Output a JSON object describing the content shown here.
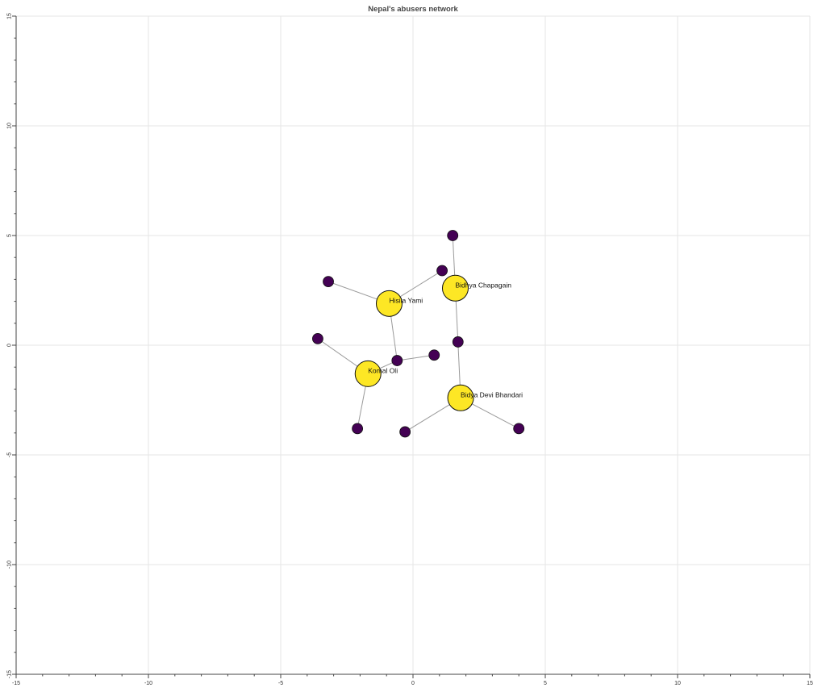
{
  "chart_data": {
    "type": "network",
    "title": "Nepal's abusers network",
    "xlim": [
      -15,
      15
    ],
    "ylim": [
      -15,
      15
    ],
    "grid": true,
    "x_ticks": [
      -15,
      -10,
      -5,
      0,
      5,
      10,
      15
    ],
    "y_ticks": [
      15,
      10,
      5,
      0,
      -5,
      -10,
      -15
    ],
    "colors": {
      "major": "#fde725",
      "minor": "#440154",
      "edge": "#9a9a9a",
      "grid": "#e6e6e6"
    },
    "nodes": [
      {
        "id": "hisila",
        "label": "Hisila Yami",
        "x": -0.9,
        "y": 1.9,
        "group": "major"
      },
      {
        "id": "bidhya",
        "label": "Bidhya Chapagain",
        "x": 1.6,
        "y": 2.6,
        "group": "major"
      },
      {
        "id": "komal",
        "label": "Komal Oli",
        "x": -1.7,
        "y": -1.3,
        "group": "major"
      },
      {
        "id": "bidya",
        "label": "Bidya Devi Bhandari",
        "x": 1.8,
        "y": -2.4,
        "group": "major"
      },
      {
        "id": "m1",
        "label": "",
        "x": 1.5,
        "y": 5.0,
        "group": "minor"
      },
      {
        "id": "m2",
        "label": "",
        "x": 1.1,
        "y": 3.4,
        "group": "minor"
      },
      {
        "id": "m3",
        "label": "",
        "x": -3.2,
        "y": 2.9,
        "group": "minor"
      },
      {
        "id": "m4",
        "label": "",
        "x": -3.6,
        "y": 0.3,
        "group": "minor"
      },
      {
        "id": "m5",
        "label": "",
        "x": -0.6,
        "y": -0.7,
        "group": "minor"
      },
      {
        "id": "m6",
        "label": "",
        "x": 0.8,
        "y": -0.45,
        "group": "minor"
      },
      {
        "id": "m7",
        "label": "",
        "x": 1.7,
        "y": 0.15,
        "group": "minor"
      },
      {
        "id": "m8",
        "label": "",
        "x": -2.1,
        "y": -3.8,
        "group": "minor"
      },
      {
        "id": "m9",
        "label": "",
        "x": -0.3,
        "y": -3.95,
        "group": "minor"
      },
      {
        "id": "m10",
        "label": "",
        "x": 4.0,
        "y": -3.8,
        "group": "minor"
      }
    ],
    "edges": [
      [
        "hisila",
        "m3"
      ],
      [
        "hisila",
        "m2"
      ],
      [
        "hisila",
        "m5"
      ],
      [
        "bidhya",
        "m1"
      ],
      [
        "bidhya",
        "m7"
      ],
      [
        "m7",
        "bidya"
      ],
      [
        "komal",
        "m4"
      ],
      [
        "komal",
        "m5"
      ],
      [
        "m5",
        "m6"
      ],
      [
        "komal",
        "m8"
      ],
      [
        "bidya",
        "m9"
      ],
      [
        "bidya",
        "m10"
      ]
    ]
  }
}
